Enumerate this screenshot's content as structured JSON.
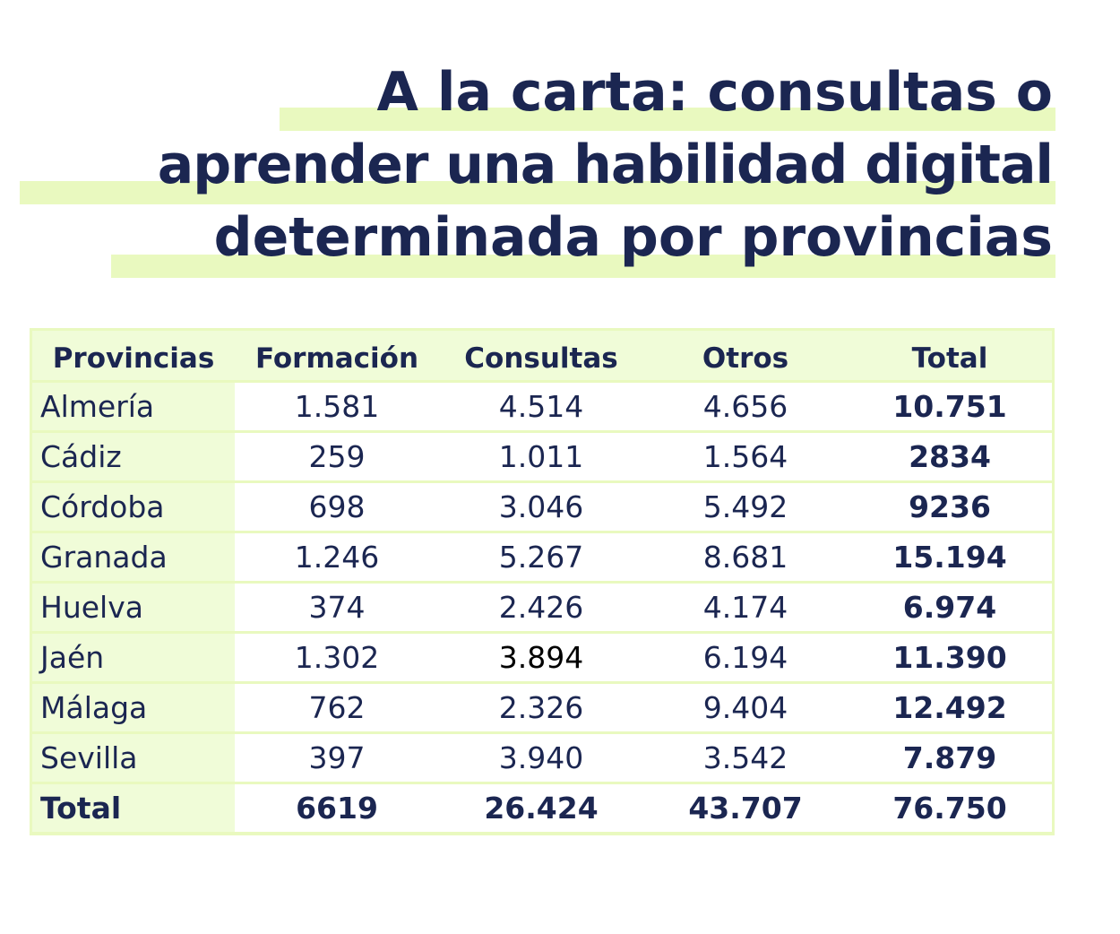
{
  "title": {
    "line1": "A la carta: consultas o",
    "line2": "aprender una habilidad digital",
    "line3": "determinada por provincias"
  },
  "table": {
    "headers": [
      "Provincias",
      "Formación",
      "Consultas",
      "Otros",
      "Total"
    ],
    "rows": [
      {
        "province": "Almería",
        "formacion": "1.581",
        "consultas": "4.514",
        "otros": "4.656",
        "total": "10.751"
      },
      {
        "province": "Cádiz",
        "formacion": "259",
        "consultas": "1.011",
        "otros": "1.564",
        "total": "2834"
      },
      {
        "province": "Córdoba",
        "formacion": "698",
        "consultas": "3.046",
        "otros": "5.492",
        "total": "9236"
      },
      {
        "province": "Granada",
        "formacion": "1.246",
        "consultas": "5.267",
        "otros": "8.681",
        "total": "15.194"
      },
      {
        "province": "Huelva",
        "formacion": "374",
        "consultas": "2.426",
        "otros": "4.174",
        "total": "6.974"
      },
      {
        "province": "Jaén",
        "formacion": "1.302",
        "consultas": "3.894",
        "otros": "6.194",
        "total": "11.390"
      },
      {
        "province": "Málaga",
        "formacion": "762",
        "consultas": "2.326",
        "otros": "9.404",
        "total": "12.492"
      },
      {
        "province": "Sevilla",
        "formacion": "397",
        "consultas": "3.940",
        "otros": "3.542",
        "total": "7.879"
      }
    ],
    "total_row": {
      "province": "Total",
      "formacion": "6619",
      "consultas": "26.424",
      "otros": "43.707",
      "total": "76.750"
    }
  },
  "colors": {
    "text": "#1b2651",
    "highlight": "#e9f9bf",
    "header_bg": "#f0fcd8"
  }
}
